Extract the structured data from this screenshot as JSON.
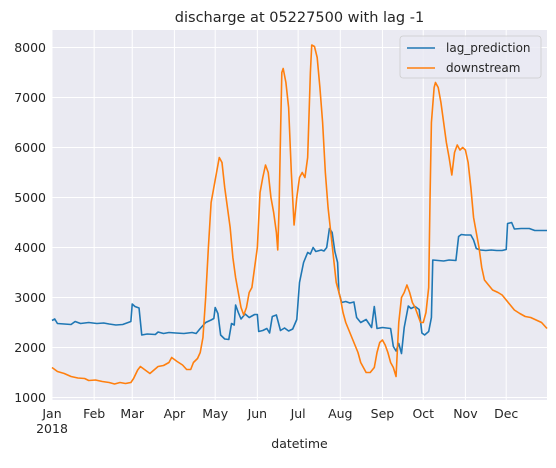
{
  "chart_data": {
    "type": "line",
    "title": "discharge at 05227500 with lag -1",
    "xlabel": "datetime",
    "ylabel": "",
    "ylim": [
      950,
      8350
    ],
    "xlim": [
      "2018-01-01",
      "2018-12-31"
    ],
    "grid": true,
    "legend_position": "top-right",
    "x_ticks": [
      {
        "date": "2018-01-01",
        "label": "Jan",
        "sublabel": "2018"
      },
      {
        "date": "2018-02-01",
        "label": "Feb"
      },
      {
        "date": "2018-03-01",
        "label": "Mar"
      },
      {
        "date": "2018-04-01",
        "label": "Apr"
      },
      {
        "date": "2018-05-01",
        "label": "May"
      },
      {
        "date": "2018-06-01",
        "label": "Jun"
      },
      {
        "date": "2018-07-01",
        "label": "Jul"
      },
      {
        "date": "2018-08-01",
        "label": "Aug"
      },
      {
        "date": "2018-09-01",
        "label": "Sep"
      },
      {
        "date": "2018-10-01",
        "label": "Oct"
      },
      {
        "date": "2018-11-01",
        "label": "Nov"
      },
      {
        "date": "2018-12-01",
        "label": "Dec"
      }
    ],
    "y_ticks": [
      1000,
      2000,
      3000,
      4000,
      5000,
      6000,
      7000,
      8000
    ],
    "series": [
      {
        "name": "lag_prediction",
        "color": "#1f77b4",
        "points": [
          [
            "2018-01-01",
            2540
          ],
          [
            "2018-01-03",
            2570
          ],
          [
            "2018-01-05",
            2480
          ],
          [
            "2018-01-10",
            2470
          ],
          [
            "2018-01-15",
            2460
          ],
          [
            "2018-01-18",
            2520
          ],
          [
            "2018-01-22",
            2480
          ],
          [
            "2018-01-28",
            2500
          ],
          [
            "2018-02-03",
            2480
          ],
          [
            "2018-02-08",
            2490
          ],
          [
            "2018-02-12",
            2470
          ],
          [
            "2018-02-17",
            2450
          ],
          [
            "2018-02-22",
            2460
          ],
          [
            "2018-02-26",
            2500
          ],
          [
            "2018-02-28",
            2520
          ],
          [
            "2018-03-01",
            2870
          ],
          [
            "2018-03-03",
            2820
          ],
          [
            "2018-03-06",
            2790
          ],
          [
            "2018-03-08",
            2250
          ],
          [
            "2018-03-12",
            2270
          ],
          [
            "2018-03-18",
            2260
          ],
          [
            "2018-03-20",
            2310
          ],
          [
            "2018-03-24",
            2280
          ],
          [
            "2018-03-28",
            2300
          ],
          [
            "2018-04-02",
            2290
          ],
          [
            "2018-04-08",
            2280
          ],
          [
            "2018-04-14",
            2300
          ],
          [
            "2018-04-17",
            2280
          ],
          [
            "2018-04-20",
            2380
          ],
          [
            "2018-04-24",
            2500
          ],
          [
            "2018-04-28",
            2550
          ],
          [
            "2018-04-30",
            2580
          ],
          [
            "2018-05-01",
            2800
          ],
          [
            "2018-05-03",
            2680
          ],
          [
            "2018-05-05",
            2250
          ],
          [
            "2018-05-08",
            2170
          ],
          [
            "2018-05-11",
            2160
          ],
          [
            "2018-05-13",
            2480
          ],
          [
            "2018-05-15",
            2450
          ],
          [
            "2018-05-16",
            2850
          ],
          [
            "2018-05-18",
            2700
          ],
          [
            "2018-05-20",
            2570
          ],
          [
            "2018-05-23",
            2670
          ],
          [
            "2018-05-26",
            2600
          ],
          [
            "2018-05-30",
            2660
          ],
          [
            "2018-06-01",
            2660
          ],
          [
            "2018-06-02",
            2320
          ],
          [
            "2018-06-05",
            2340
          ],
          [
            "2018-06-08",
            2380
          ],
          [
            "2018-06-10",
            2290
          ],
          [
            "2018-06-12",
            2620
          ],
          [
            "2018-06-15",
            2650
          ],
          [
            "2018-06-18",
            2340
          ],
          [
            "2018-06-21",
            2390
          ],
          [
            "2018-06-24",
            2330
          ],
          [
            "2018-06-27",
            2370
          ],
          [
            "2018-06-30",
            2560
          ],
          [
            "2018-07-02",
            3300
          ],
          [
            "2018-07-05",
            3700
          ],
          [
            "2018-07-08",
            3900
          ],
          [
            "2018-07-10",
            3870
          ],
          [
            "2018-07-12",
            4000
          ],
          [
            "2018-07-14",
            3920
          ],
          [
            "2018-07-18",
            3950
          ],
          [
            "2018-07-20",
            3930
          ],
          [
            "2018-07-22",
            4000
          ],
          [
            "2018-07-24",
            4380
          ],
          [
            "2018-07-26",
            4300
          ],
          [
            "2018-07-28",
            3920
          ],
          [
            "2018-07-30",
            3700
          ],
          [
            "2018-07-31",
            3100
          ],
          [
            "2018-08-02",
            2900
          ],
          [
            "2018-08-05",
            2920
          ],
          [
            "2018-08-08",
            2890
          ],
          [
            "2018-08-11",
            2910
          ],
          [
            "2018-08-13",
            2600
          ],
          [
            "2018-08-16",
            2500
          ],
          [
            "2018-08-20",
            2560
          ],
          [
            "2018-08-24",
            2400
          ],
          [
            "2018-08-26",
            2820
          ],
          [
            "2018-08-28",
            2380
          ],
          [
            "2018-09-01",
            2400
          ],
          [
            "2018-09-04",
            2390
          ],
          [
            "2018-09-07",
            2380
          ],
          [
            "2018-09-09",
            2020
          ],
          [
            "2018-09-11",
            1930
          ],
          [
            "2018-09-13",
            2080
          ],
          [
            "2018-09-15",
            1880
          ],
          [
            "2018-09-17",
            2400
          ],
          [
            "2018-09-20",
            2830
          ],
          [
            "2018-09-22",
            2780
          ],
          [
            "2018-09-25",
            2820
          ],
          [
            "2018-09-28",
            2760
          ],
          [
            "2018-09-30",
            2290
          ],
          [
            "2018-10-02",
            2250
          ],
          [
            "2018-10-05",
            2320
          ],
          [
            "2018-10-07",
            2600
          ],
          [
            "2018-10-08",
            3750
          ],
          [
            "2018-10-12",
            3740
          ],
          [
            "2018-10-16",
            3730
          ],
          [
            "2018-10-20",
            3750
          ],
          [
            "2018-10-25",
            3740
          ],
          [
            "2018-10-27",
            4220
          ],
          [
            "2018-10-29",
            4260
          ],
          [
            "2018-11-01",
            4250
          ],
          [
            "2018-11-05",
            4250
          ],
          [
            "2018-11-07",
            4150
          ],
          [
            "2018-11-09",
            3980
          ],
          [
            "2018-11-12",
            3950
          ],
          [
            "2018-11-16",
            3940
          ],
          [
            "2018-11-20",
            3950
          ],
          [
            "2018-11-24",
            3940
          ],
          [
            "2018-11-28",
            3940
          ],
          [
            "2018-12-01",
            3960
          ],
          [
            "2018-12-02",
            4480
          ],
          [
            "2018-12-05",
            4500
          ],
          [
            "2018-12-07",
            4370
          ],
          [
            "2018-12-12",
            4380
          ],
          [
            "2018-12-18",
            4380
          ],
          [
            "2018-12-22",
            4340
          ],
          [
            "2018-12-31",
            4340
          ]
        ]
      },
      {
        "name": "downstream",
        "color": "#ff7f0e",
        "points": [
          [
            "2018-01-01",
            1600
          ],
          [
            "2018-01-05",
            1520
          ],
          [
            "2018-01-10",
            1480
          ],
          [
            "2018-01-15",
            1420
          ],
          [
            "2018-01-20",
            1390
          ],
          [
            "2018-01-25",
            1380
          ],
          [
            "2018-01-28",
            1340
          ],
          [
            "2018-02-02",
            1350
          ],
          [
            "2018-02-07",
            1320
          ],
          [
            "2018-02-12",
            1300
          ],
          [
            "2018-02-16",
            1270
          ],
          [
            "2018-02-20",
            1300
          ],
          [
            "2018-02-24",
            1280
          ],
          [
            "2018-02-28",
            1300
          ],
          [
            "2018-03-02",
            1380
          ],
          [
            "2018-03-05",
            1550
          ],
          [
            "2018-03-07",
            1620
          ],
          [
            "2018-03-10",
            1560
          ],
          [
            "2018-03-14",
            1480
          ],
          [
            "2018-03-17",
            1550
          ],
          [
            "2018-03-20",
            1620
          ],
          [
            "2018-03-24",
            1640
          ],
          [
            "2018-03-28",
            1700
          ],
          [
            "2018-03-30",
            1800
          ],
          [
            "2018-04-03",
            1720
          ],
          [
            "2018-04-07",
            1650
          ],
          [
            "2018-04-10",
            1560
          ],
          [
            "2018-04-13",
            1560
          ],
          [
            "2018-04-15",
            1700
          ],
          [
            "2018-04-18",
            1780
          ],
          [
            "2018-04-20",
            1900
          ],
          [
            "2018-04-22",
            2200
          ],
          [
            "2018-04-24",
            3000
          ],
          [
            "2018-04-26",
            4000
          ],
          [
            "2018-04-28",
            4900
          ],
          [
            "2018-04-30",
            5200
          ],
          [
            "2018-05-02",
            5500
          ],
          [
            "2018-05-04",
            5800
          ],
          [
            "2018-05-06",
            5700
          ],
          [
            "2018-05-08",
            5200
          ],
          [
            "2018-05-10",
            4800
          ],
          [
            "2018-05-12",
            4400
          ],
          [
            "2018-05-14",
            3800
          ],
          [
            "2018-05-16",
            3400
          ],
          [
            "2018-05-18",
            3100
          ],
          [
            "2018-05-20",
            2800
          ],
          [
            "2018-05-22",
            2650
          ],
          [
            "2018-05-24",
            2800
          ],
          [
            "2018-05-26",
            3100
          ],
          [
            "2018-05-28",
            3200
          ],
          [
            "2018-05-30",
            3600
          ],
          [
            "2018-06-01",
            4000
          ],
          [
            "2018-06-03",
            5100
          ],
          [
            "2018-06-05",
            5400
          ],
          [
            "2018-06-07",
            5650
          ],
          [
            "2018-06-09",
            5500
          ],
          [
            "2018-06-11",
            5000
          ],
          [
            "2018-06-13",
            4700
          ],
          [
            "2018-06-15",
            4300
          ],
          [
            "2018-06-16",
            3950
          ],
          [
            "2018-06-17",
            4800
          ],
          [
            "2018-06-18",
            6200
          ],
          [
            "2018-06-19",
            7500
          ],
          [
            "2018-06-20",
            7580
          ],
          [
            "2018-06-22",
            7300
          ],
          [
            "2018-06-24",
            6800
          ],
          [
            "2018-06-26",
            5500
          ],
          [
            "2018-06-28",
            4450
          ],
          [
            "2018-06-30",
            5000
          ],
          [
            "2018-07-02",
            5400
          ],
          [
            "2018-07-04",
            5500
          ],
          [
            "2018-07-06",
            5400
          ],
          [
            "2018-07-08",
            5800
          ],
          [
            "2018-07-10",
            7500
          ],
          [
            "2018-07-11",
            8050
          ],
          [
            "2018-07-13",
            8020
          ],
          [
            "2018-07-15",
            7800
          ],
          [
            "2018-07-17",
            7200
          ],
          [
            "2018-07-19",
            6500
          ],
          [
            "2018-07-21",
            5500
          ],
          [
            "2018-07-23",
            4800
          ],
          [
            "2018-07-25",
            4300
          ],
          [
            "2018-07-27",
            3800
          ],
          [
            "2018-07-29",
            3300
          ],
          [
            "2018-08-01",
            3000
          ],
          [
            "2018-08-03",
            2700
          ],
          [
            "2018-08-05",
            2500
          ],
          [
            "2018-08-08",
            2300
          ],
          [
            "2018-08-11",
            2100
          ],
          [
            "2018-08-14",
            1900
          ],
          [
            "2018-08-16",
            1700
          ],
          [
            "2018-08-18",
            1600
          ],
          [
            "2018-08-20",
            1500
          ],
          [
            "2018-08-23",
            1500
          ],
          [
            "2018-08-26",
            1600
          ],
          [
            "2018-08-28",
            1900
          ],
          [
            "2018-08-30",
            2100
          ],
          [
            "2018-09-01",
            2150
          ],
          [
            "2018-09-03",
            2050
          ],
          [
            "2018-09-05",
            1900
          ],
          [
            "2018-09-07",
            1700
          ],
          [
            "2018-09-09",
            1600
          ],
          [
            "2018-09-11",
            1420
          ],
          [
            "2018-09-13",
            2500
          ],
          [
            "2018-09-15",
            3000
          ],
          [
            "2018-09-17",
            3100
          ],
          [
            "2018-09-19",
            3250
          ],
          [
            "2018-09-21",
            3100
          ],
          [
            "2018-09-23",
            2900
          ],
          [
            "2018-09-25",
            2800
          ],
          [
            "2018-09-27",
            2650
          ],
          [
            "2018-09-29",
            2500
          ],
          [
            "2018-10-01",
            2500
          ],
          [
            "2018-10-03",
            2700
          ],
          [
            "2018-10-05",
            3200
          ],
          [
            "2018-10-06",
            5000
          ],
          [
            "2018-10-07",
            6500
          ],
          [
            "2018-10-09",
            7200
          ],
          [
            "2018-10-10",
            7300
          ],
          [
            "2018-10-12",
            7200
          ],
          [
            "2018-10-14",
            6900
          ],
          [
            "2018-10-16",
            6500
          ],
          [
            "2018-10-18",
            6100
          ],
          [
            "2018-10-20",
            5800
          ],
          [
            "2018-10-22",
            5450
          ],
          [
            "2018-10-24",
            5900
          ],
          [
            "2018-10-26",
            6050
          ],
          [
            "2018-10-28",
            5950
          ],
          [
            "2018-10-30",
            6000
          ],
          [
            "2018-11-01",
            5950
          ],
          [
            "2018-11-03",
            5700
          ],
          [
            "2018-11-05",
            5200
          ],
          [
            "2018-11-07",
            4600
          ],
          [
            "2018-11-09",
            4300
          ],
          [
            "2018-11-11",
            4000
          ],
          [
            "2018-11-13",
            3600
          ],
          [
            "2018-11-15",
            3350
          ],
          [
            "2018-11-18",
            3250
          ],
          [
            "2018-11-21",
            3150
          ],
          [
            "2018-11-25",
            3100
          ],
          [
            "2018-11-28",
            3050
          ],
          [
            "2018-12-01",
            2950
          ],
          [
            "2018-12-04",
            2850
          ],
          [
            "2018-12-07",
            2750
          ],
          [
            "2018-12-11",
            2680
          ],
          [
            "2018-12-15",
            2620
          ],
          [
            "2018-12-19",
            2600
          ],
          [
            "2018-12-23",
            2550
          ],
          [
            "2018-12-27",
            2500
          ],
          [
            "2018-12-31",
            2380
          ]
        ]
      }
    ]
  }
}
